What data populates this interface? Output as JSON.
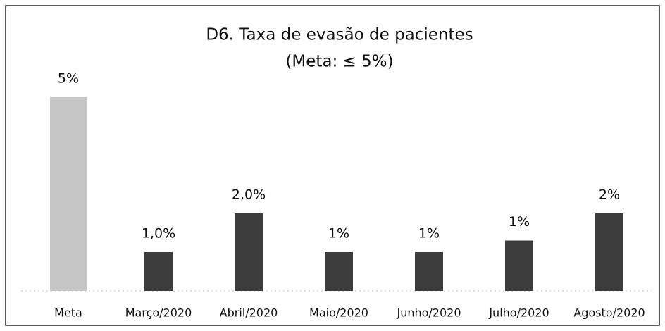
{
  "chart_data": {
    "type": "bar",
    "title": "D6. Taxa de evasão de pacientes",
    "subtitle": "(Meta: ≤ 5%)",
    "categories": [
      "Meta",
      "Março/2020",
      "Abril/2020",
      "Maio/2020",
      "Junho/2020",
      "Julho/2020",
      "Agosto/2020"
    ],
    "values": [
      5,
      1.0,
      2.0,
      1.0,
      1.0,
      1.3,
      2.0
    ],
    "value_labels": [
      "5%",
      "1,0%",
      "2,0%",
      "1%",
      "1%",
      "1%",
      "2%"
    ],
    "colors": [
      "#c6c6c6",
      "#3c3c3c",
      "#3c3c3c",
      "#3c3c3c",
      "#3c3c3c",
      "#3c3c3c",
      "#3c3c3c"
    ],
    "ylim": [
      0,
      5
    ]
  }
}
